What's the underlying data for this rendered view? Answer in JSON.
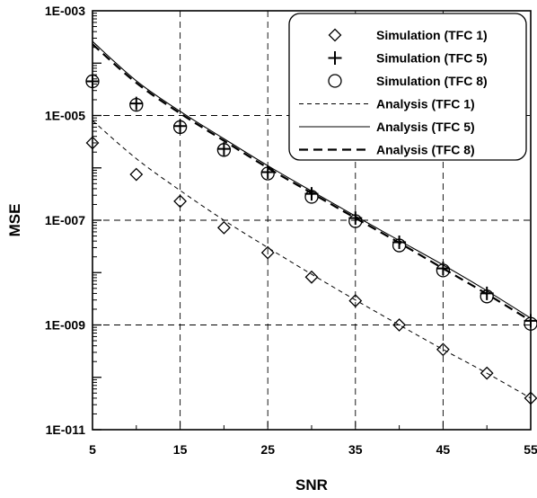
{
  "chart_data": {
    "type": "scatter",
    "xlabel": "SNR",
    "ylabel": "MSE",
    "xlim": [
      5,
      55
    ],
    "ylim": [
      1e-11,
      0.001
    ],
    "yscale": "log",
    "grid": true,
    "legend_position": "top-right",
    "x_ticks": [
      5,
      15,
      25,
      35,
      45,
      55
    ],
    "x_tick_labels": [
      "5",
      "15",
      "25",
      "35",
      "45",
      "55"
    ],
    "y_ticks": [
      0.001,
      1e-05,
      1e-07,
      1e-09,
      1e-11
    ],
    "y_tick_labels": [
      "1E-003",
      "1E-005",
      "1E-007",
      "1E-009",
      "1E-011"
    ],
    "series": [
      {
        "name": "Simulation (TFC 1)",
        "kind": "marker",
        "marker": "diamond",
        "x": [
          5,
          10,
          15,
          20,
          25,
          30,
          35,
          40,
          45,
          50,
          55
        ],
        "y": [
          3e-06,
          7.5e-07,
          2.3e-07,
          7.2e-08,
          2.4e-08,
          8.2e-09,
          2.9e-09,
          1e-09,
          3.4e-10,
          1.2e-10,
          4e-11
        ]
      },
      {
        "name": "Simulation (TFC 5)",
        "kind": "marker",
        "marker": "plus",
        "x": [
          5,
          10,
          15,
          20,
          25,
          30,
          35,
          40,
          45,
          50,
          55
        ],
        "y": [
          4.5e-05,
          1.7e-05,
          6.3e-06,
          2.3e-06,
          8.3e-07,
          3.2e-07,
          1.1e-07,
          3.8e-08,
          1.2e-08,
          4e-09,
          1.2e-09
        ]
      },
      {
        "name": "Simulation (TFC 8)",
        "kind": "marker",
        "marker": "circle",
        "x": [
          5,
          10,
          15,
          20,
          25,
          30,
          35,
          40,
          45,
          50,
          55
        ],
        "y": [
          4.5e-05,
          1.6e-05,
          6e-06,
          2.2e-06,
          7.8e-07,
          2.8e-07,
          9.6e-08,
          3.3e-08,
          1.1e-08,
          3.5e-09,
          1.05e-09
        ]
      },
      {
        "name": "Analysis (TFC 1)",
        "kind": "line",
        "dash": "short",
        "x": [
          5,
          10,
          15,
          20,
          25,
          30,
          35,
          40,
          45,
          50,
          55
        ],
        "y": [
          8e-06,
          1.5e-06,
          3.7e-07,
          1e-07,
          3e-08,
          9.3e-09,
          3e-09,
          1e-09,
          3.4e-10,
          1.2e-10,
          4e-11
        ]
      },
      {
        "name": "Analysis (TFC 5)",
        "kind": "line",
        "dash": "solid",
        "x": [
          5,
          10,
          15,
          20,
          25,
          30,
          35,
          40,
          45,
          50,
          55
        ],
        "y": [
          0.00026,
          4.6e-05,
          1.2e-05,
          3.6e-06,
          1.1e-06,
          3.6e-07,
          1.2e-07,
          4.1e-08,
          1.4e-08,
          4.5e-09,
          1.35e-09
        ]
      },
      {
        "name": "Analysis (TFC 8)",
        "kind": "line",
        "dash": "long",
        "x": [
          5,
          10,
          15,
          20,
          25,
          30,
          35,
          40,
          45,
          50,
          55
        ],
        "y": [
          0.00023,
          4.2e-05,
          1.1e-05,
          3.3e-06,
          1e-06,
          3.3e-07,
          1.1e-07,
          3.7e-08,
          1.2e-08,
          3.9e-09,
          1.2e-09
        ]
      }
    ]
  },
  "colors": {
    "ink": "#000000",
    "grid": "#000000",
    "background": "#ffffff"
  }
}
